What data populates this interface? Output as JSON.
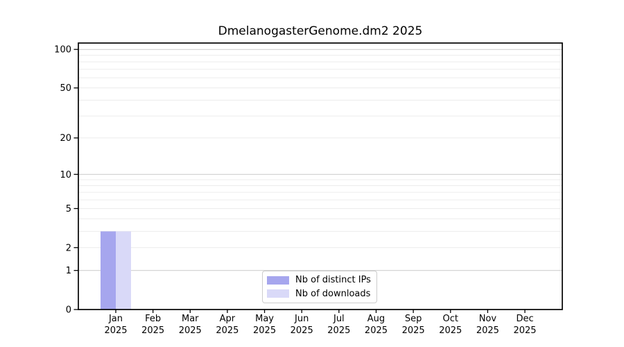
{
  "title": "DmelanogasterGenome.dm2 2025",
  "background_color": "#ffffff",
  "chart_data": {
    "type": "bar",
    "title": "DmelanogasterGenome.dm2 2025",
    "categories": [
      "Jan",
      "Feb",
      "Mar",
      "Apr",
      "May",
      "Jun",
      "Jul",
      "Aug",
      "Sep",
      "Oct",
      "Nov",
      "Dec"
    ],
    "year_label": "2025",
    "series": [
      {
        "name": "Nb of distinct IPs",
        "color": "#a6a6ee",
        "values": [
          3,
          0,
          0,
          0,
          0,
          0,
          0,
          0,
          0,
          0,
          0,
          0
        ]
      },
      {
        "name": "Nb of downloads",
        "color": "#d9d9f8",
        "values": [
          3,
          0,
          0,
          0,
          0,
          0,
          0,
          0,
          0,
          0,
          0,
          0
        ]
      }
    ],
    "y_scale": "log10(1+v)",
    "y_ticks": [
      0,
      1,
      2,
      5,
      10,
      20,
      50,
      100
    ],
    "y_minor_gridlines": [
      3,
      4,
      6,
      7,
      8,
      9,
      30,
      40,
      60,
      70,
      80,
      90
    ],
    "ylim": [
      0,
      116
    ],
    "xlabel": "",
    "ylabel": "",
    "grid": true,
    "legend_position": "bottom-center",
    "colors": {
      "axis": "#000000",
      "tick_label": "#000000",
      "grid_major_decade": "#c9c9c9",
      "grid_minor": "#ececec",
      "legend_border": "#cccccc"
    }
  }
}
